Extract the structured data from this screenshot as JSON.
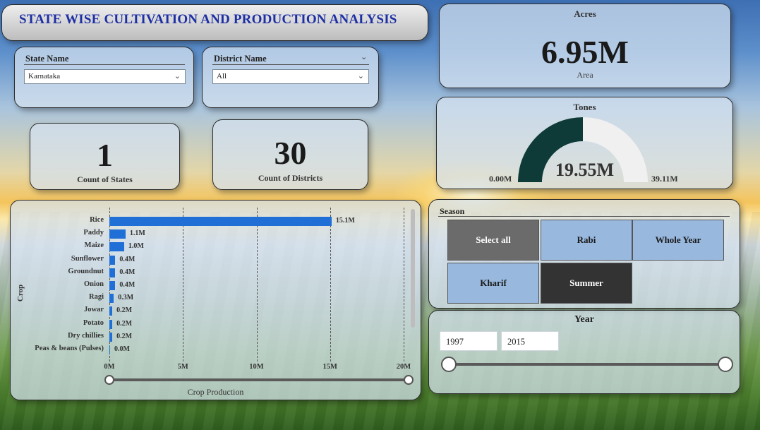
{
  "title": "STATE WISE CULTIVATION AND PRODUCTION ANALYSIS",
  "state_slicer": {
    "label": "State Name",
    "value": "Karnataka"
  },
  "district_slicer": {
    "label": "District Name",
    "value": "All"
  },
  "count_states": {
    "value": "1",
    "label": "Count of States"
  },
  "count_districts": {
    "value": "30",
    "label": "Count of Districts"
  },
  "acres": {
    "title": "Acres",
    "value": "6.95M",
    "label": "Area"
  },
  "tones": {
    "title": "Tones",
    "value": "19.55M",
    "min": "0.00M",
    "max": "39.11M",
    "fraction": 0.5,
    "fill_color": "#0e3b37",
    "track_color": "#f0f0f0"
  },
  "season": {
    "title": "Season",
    "buttons": [
      {
        "label": "Select all",
        "bg": "#6b6b6b",
        "fg": "#ffffff"
      },
      {
        "label": "Rabi",
        "bg": "#98b8de",
        "fg": "#1a1a1a"
      },
      {
        "label": "Whole Year",
        "bg": "#98b8de",
        "fg": "#1a1a1a"
      },
      {
        "label": "Kharif",
        "bg": "#98b8de",
        "fg": "#1a1a1a"
      },
      {
        "label": "Summer",
        "bg": "#333333",
        "fg": "#ffffff"
      }
    ]
  },
  "year": {
    "title": "Year",
    "from": "1997",
    "to": "2015"
  },
  "chart_data": {
    "type": "bar",
    "orientation": "horizontal",
    "ylabel": "Crop",
    "xlabel": "Crop Production",
    "categories": [
      "Rice",
      "Paddy",
      "Maize",
      "Sunflower",
      "Groundnut",
      "Onion",
      "Ragi",
      "Jowar",
      "Potato",
      "Dry chillies",
      "Peas & beans (Pulses)"
    ],
    "values": [
      15.1,
      1.1,
      1.0,
      0.4,
      0.4,
      0.4,
      0.3,
      0.2,
      0.2,
      0.2,
      0.0
    ],
    "value_labels": [
      "15.1M",
      "1.1M",
      "1.0M",
      "0.4M",
      "0.4M",
      "0.4M",
      "0.3M",
      "0.2M",
      "0.2M",
      "0.2M",
      "0.0M"
    ],
    "xlim": [
      0,
      20
    ],
    "xticks": [
      "0M",
      "5M",
      "10M",
      "15M",
      "20M"
    ],
    "bar_color": "#1f6fd6",
    "grid": true
  }
}
